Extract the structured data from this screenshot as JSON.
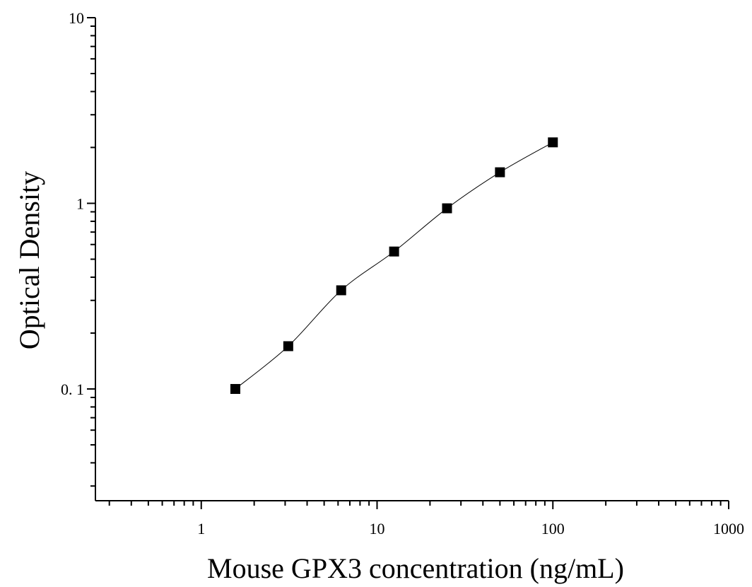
{
  "chart_data": {
    "type": "scatter",
    "xlabel": "Mouse GPX3 concentration (ng/mL)",
    "ylabel": "Optical Density",
    "x_scale": "log",
    "y_scale": "log",
    "xlim": [
      0.25,
      1000
    ],
    "ylim": [
      0.025,
      10
    ],
    "x_ticks": [
      {
        "value": 1,
        "label": "1"
      },
      {
        "value": 10,
        "label": "10"
      },
      {
        "value": 100,
        "label": "100"
      },
      {
        "value": 1000,
        "label": "1000"
      }
    ],
    "y_ticks": [
      {
        "value": 0.1,
        "label": "0. 1"
      },
      {
        "value": 1,
        "label": "1"
      },
      {
        "value": 10,
        "label": "10"
      }
    ],
    "grid": false,
    "series": [
      {
        "x": [
          1.5625,
          3.125,
          6.25,
          12.5,
          25,
          50,
          100
        ],
        "y": [
          0.1,
          0.17,
          0.34,
          0.55,
          0.94,
          1.47,
          2.13
        ],
        "marker": "square",
        "fit_line": true,
        "color": "#000000"
      }
    ]
  }
}
